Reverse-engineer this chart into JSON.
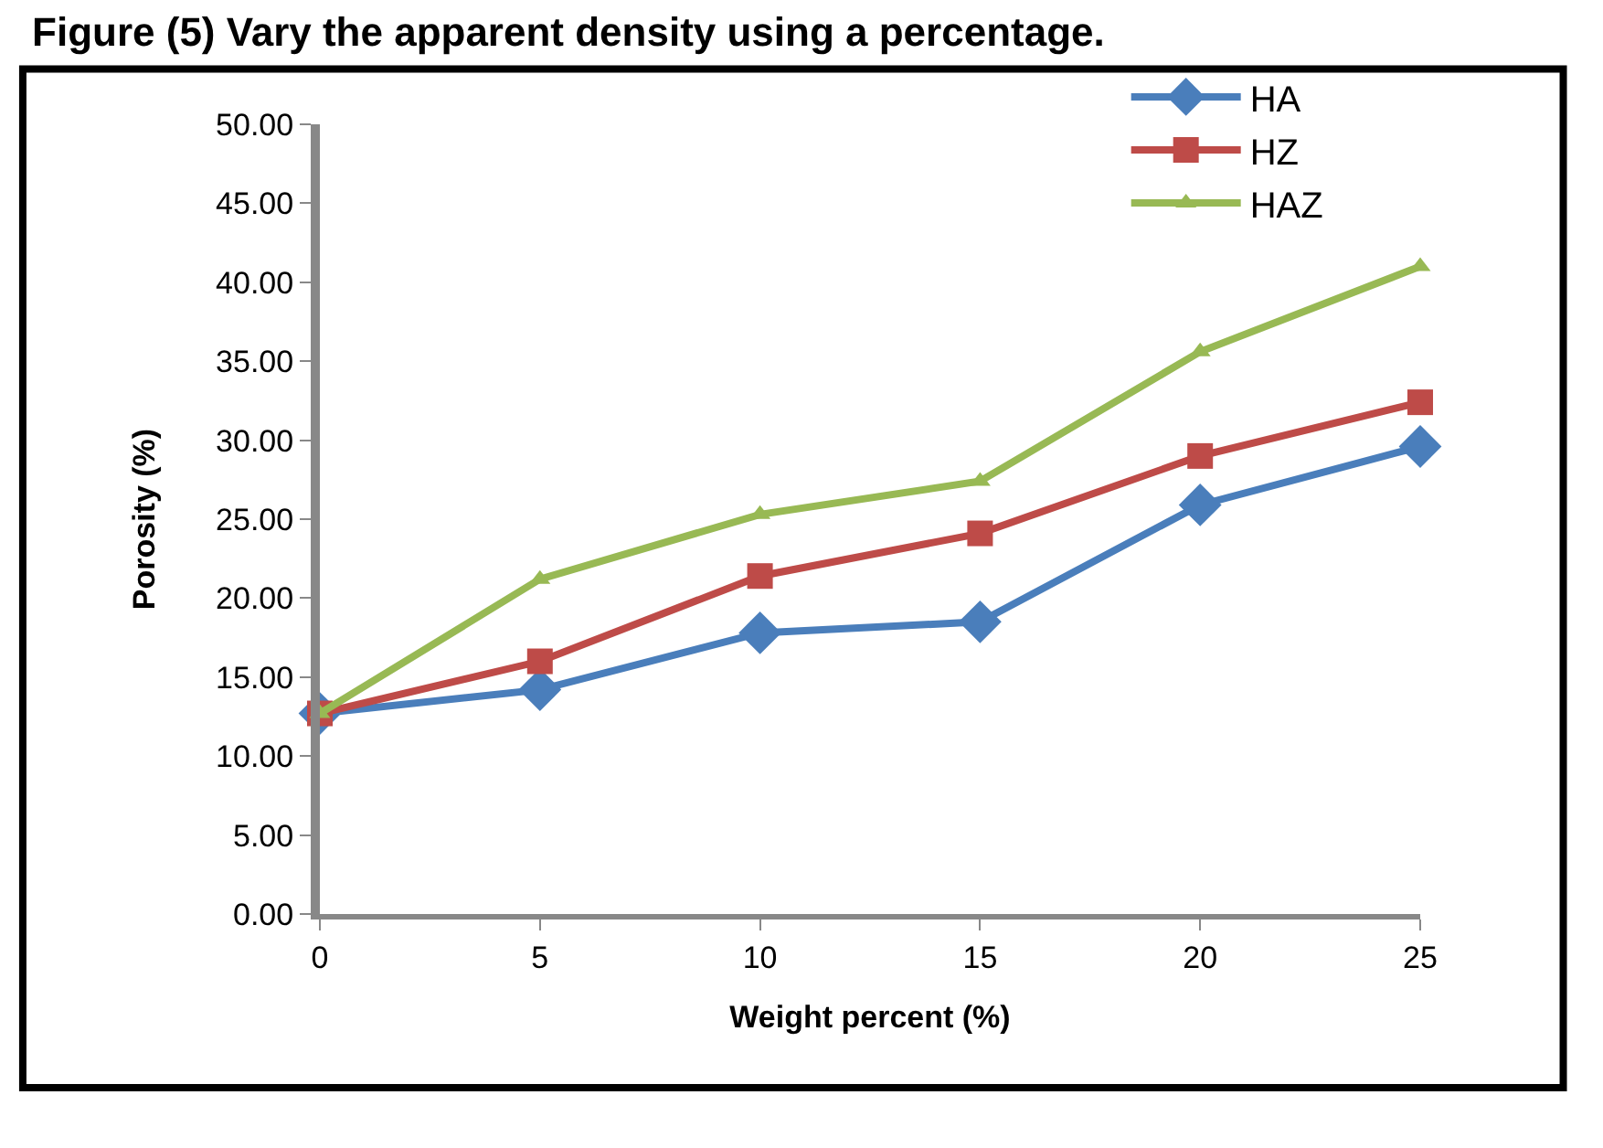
{
  "chart_data": {
    "type": "line",
    "title": "Figure (5) Vary the apparent density using a percentage.",
    "xlabel": "Weight percent (%)",
    "ylabel": "Porosity (%)",
    "x": [
      0,
      5,
      10,
      15,
      20,
      25
    ],
    "series": [
      {
        "name": "HA",
        "color": "#4a7ebb",
        "marker": "diamond",
        "values": [
          12.7,
          14.2,
          17.8,
          18.5,
          25.9,
          29.6
        ]
      },
      {
        "name": "HZ",
        "color": "#be4b48",
        "marker": "square",
        "values": [
          12.7,
          16.0,
          21.4,
          24.1,
          29.0,
          32.4
        ]
      },
      {
        "name": "HAZ",
        "color": "#98b954",
        "marker": "triangle",
        "values": [
          12.7,
          21.2,
          25.3,
          27.4,
          35.6,
          41.0
        ]
      }
    ],
    "xlim": [
      0,
      25
    ],
    "xticks": [
      0,
      5,
      10,
      15,
      20,
      25
    ],
    "ylim": [
      0,
      50
    ],
    "yticks": [
      {
        "value": 0,
        "label": "0.00"
      },
      {
        "value": 5,
        "label": "5.00"
      },
      {
        "value": 10,
        "label": "10.00"
      },
      {
        "value": 15,
        "label": "15.00"
      },
      {
        "value": 20,
        "label": "20.00"
      },
      {
        "value": 25,
        "label": "25.00"
      },
      {
        "value": 30,
        "label": "30.00"
      },
      {
        "value": 35,
        "label": "35.00"
      },
      {
        "value": 40,
        "label": "40.00"
      },
      {
        "value": 45,
        "label": "45.00"
      },
      {
        "value": 50,
        "label": "50.00"
      }
    ],
    "grid": false,
    "legend": "top right",
    "line_style": "solid"
  }
}
